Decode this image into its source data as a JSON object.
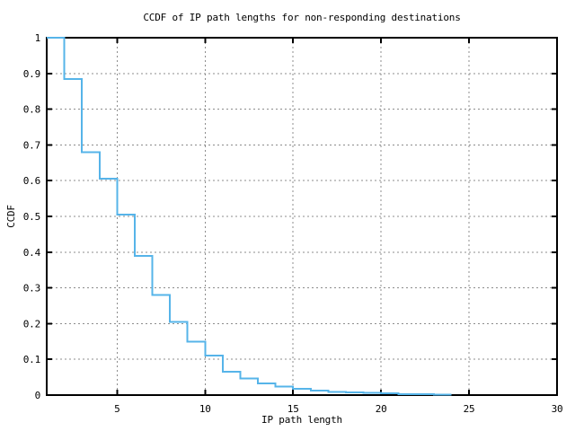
{
  "colors": {
    "curve": "#56b4e9",
    "grid": "#8c8c8c",
    "axis": "#000000",
    "background": "#ffffff"
  },
  "chart_data": {
    "type": "line",
    "subtype": "step-post",
    "title": "CCDF of IP path lengths for non-responding destinations",
    "xlabel": "IP path length",
    "ylabel": "CCDF",
    "xlim": [
      1,
      30
    ],
    "ylim": [
      0,
      1
    ],
    "grid": true,
    "legend": "none",
    "xticks": {
      "values": [
        5,
        10,
        15,
        20,
        25,
        30
      ],
      "labels": [
        "5",
        "10",
        "15",
        "20",
        "25",
        "30"
      ]
    },
    "yticks": {
      "values": [
        0,
        0.1,
        0.2,
        0.3,
        0.4,
        0.5,
        0.6,
        0.7,
        0.8,
        0.9,
        1
      ],
      "labels": [
        "0",
        "0.1",
        "0.2",
        "0.3",
        "0.4",
        "0.5",
        "0.6",
        "0.7",
        "0.8",
        "0.9",
        "1"
      ]
    },
    "series": [
      {
        "name": "ccdf-of-ip-path-lengths",
        "color": "#56b4e9",
        "x": [
          1,
          2,
          3,
          4,
          5,
          6,
          7,
          8,
          9,
          10,
          11,
          12,
          13,
          14,
          15,
          16,
          17,
          18,
          19,
          20,
          21,
          22,
          23
        ],
        "y": [
          1.0,
          0.885,
          0.68,
          0.605,
          0.505,
          0.39,
          0.28,
          0.205,
          0.15,
          0.11,
          0.065,
          0.047,
          0.033,
          0.024,
          0.017,
          0.012,
          0.009,
          0.007,
          0.006,
          0.005,
          0.0025,
          0.002,
          0.0015
        ],
        "end_x": 24
      }
    ]
  }
}
